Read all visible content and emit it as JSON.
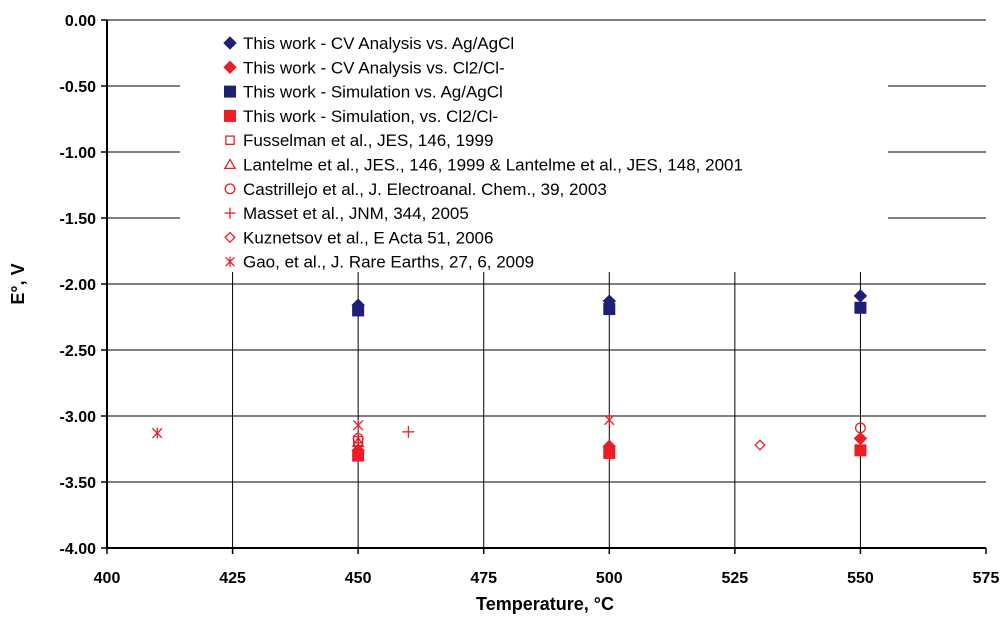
{
  "chart_data": {
    "type": "scatter",
    "title": "",
    "xlabel": "Temperature, °C",
    "ylabel": "E°, V",
    "xlim": [
      400,
      575
    ],
    "ylim": [
      -4.0,
      0.0
    ],
    "x_ticks": [
      "400",
      "425",
      "450",
      "475",
      "500",
      "525",
      "550",
      "575"
    ],
    "y_ticks": [
      "0.00",
      "-0.50",
      "-1.00",
      "-1.50",
      "-2.00",
      "-2.50",
      "-3.00",
      "-3.50",
      "-4.00"
    ],
    "grid": "vertical and horizontal",
    "legend_position": "top-left, inside plot",
    "series": [
      {
        "name": "This work - CV Analysis vs. Ag/AgCl",
        "marker": "diamond-filled",
        "color": "#1f1f7a",
        "points": [
          [
            450,
            -2.16
          ],
          [
            500,
            -2.13
          ],
          [
            550,
            -2.09
          ]
        ]
      },
      {
        "name": "This work - CV Analysis vs. Cl2/Cl-",
        "marker": "diamond-filled",
        "color": "#ee1c25",
        "points": [
          [
            450,
            -3.26
          ],
          [
            500,
            -3.23
          ],
          [
            550,
            -3.17
          ]
        ]
      },
      {
        "name": "This work - Simulation vs. Ag/AgCl",
        "marker": "square-filled",
        "color": "#1f1f7a",
        "points": [
          [
            450,
            -2.2
          ],
          [
            500,
            -2.19
          ],
          [
            550,
            -2.18
          ]
        ]
      },
      {
        "name": "This work - Simulation, vs. Cl2/Cl-",
        "marker": "square-filled",
        "color": "#ee1c25",
        "points": [
          [
            450,
            -3.3
          ],
          [
            500,
            -3.28
          ],
          [
            550,
            -3.26
          ]
        ]
      },
      {
        "name": "Fusselman et al., JES, 146, 1999",
        "marker": "square-open",
        "color": "#ee1c25",
        "points": [
          [
            450,
            -3.19
          ]
        ]
      },
      {
        "name": "Lantelme et al., JES., 146, 1999 & Lantelme et al., JES, 148, 2001",
        "marker": "triangle-open",
        "color": "#ee1c25",
        "points": [
          [
            450,
            -3.2
          ]
        ]
      },
      {
        "name": "Castrillejo et al., J. Electroanal. Chem., 39, 2003",
        "marker": "circle-open",
        "color": "#ee1c25",
        "points": [
          [
            450,
            -3.17
          ],
          [
            550,
            -3.09
          ]
        ]
      },
      {
        "name": "Masset et al., JNM, 344, 2005",
        "marker": "plus",
        "color": "#ee1c25",
        "points": [
          [
            460,
            -3.12
          ]
        ]
      },
      {
        "name": "Kuznetsov et al., E Acta 51, 2006",
        "marker": "diamond-open",
        "color": "#ee1c25",
        "points": [
          [
            530,
            -3.22
          ]
        ]
      },
      {
        "name": "Gao, et al., J. Rare Earths, 27, 6, 2009",
        "marker": "asterisk",
        "color": "#ee1c25",
        "points": [
          [
            410,
            -3.13
          ],
          [
            450,
            -3.07
          ],
          [
            500,
            -3.03
          ]
        ]
      }
    ]
  }
}
